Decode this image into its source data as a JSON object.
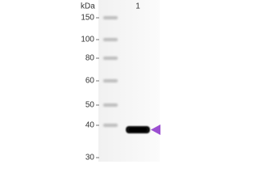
{
  "blot": {
    "unit_label": "kDa",
    "lane_labels": [
      "1"
    ],
    "markers": [
      150,
      100,
      80,
      60,
      50,
      40,
      30
    ]
  }
}
